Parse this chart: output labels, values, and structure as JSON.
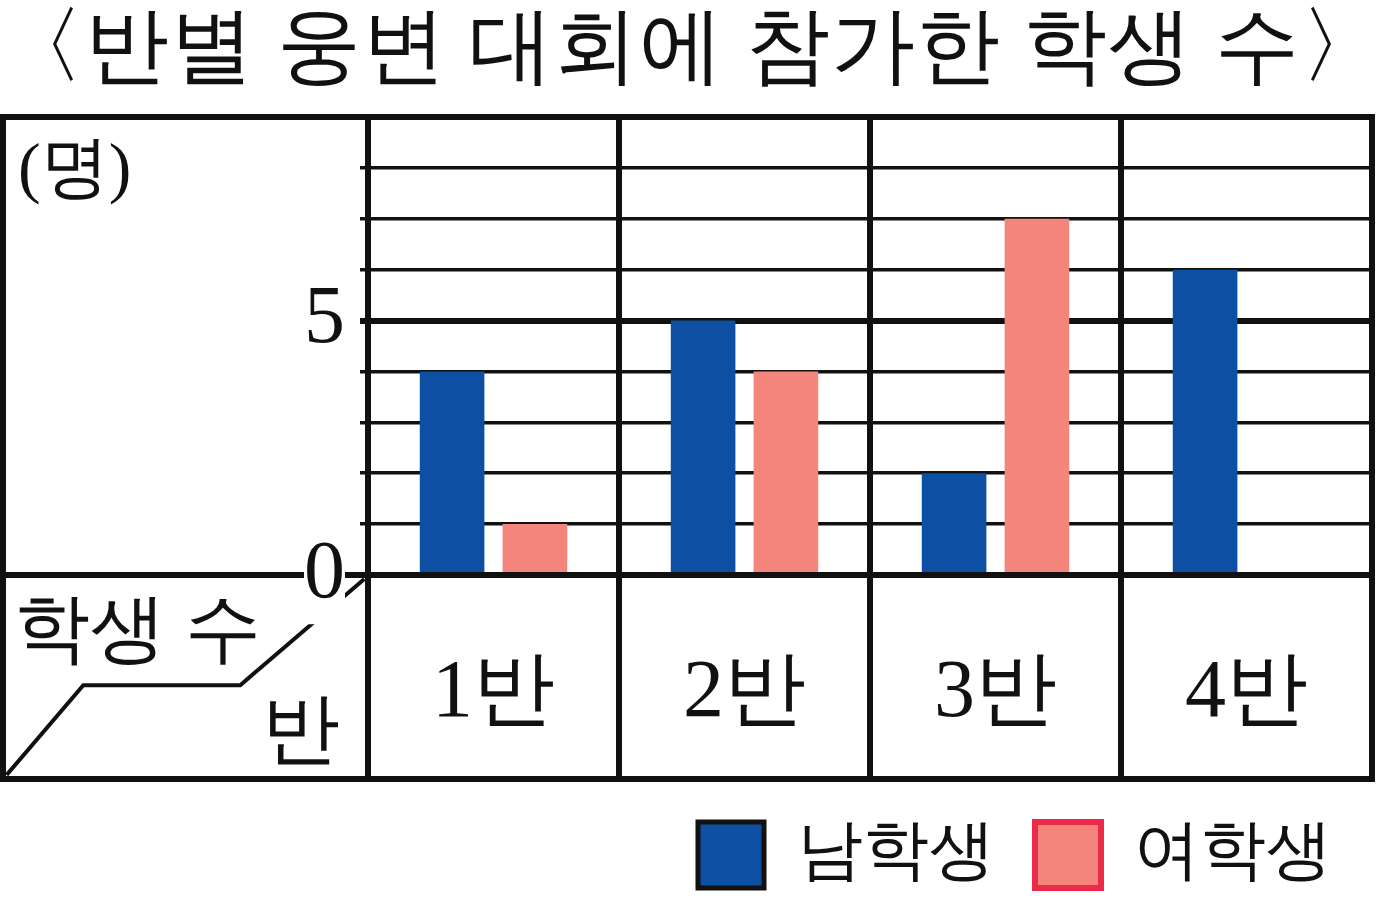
{
  "chart_data": {
    "type": "bar",
    "title": "〈반별 웅변 대회에 참가한 학생 수〉",
    "xlabel": "반",
    "ylabel": "(명)",
    "annotations": [
      "학생 수"
    ],
    "categories": [
      "1반",
      "2반",
      "3반",
      "4반"
    ],
    "series": [
      {
        "name": "남학생",
        "color": "#0d4fa3",
        "values": [
          4,
          5,
          2,
          6
        ]
      },
      {
        "name": "여학생",
        "color": "#f3857c",
        "values": [
          1,
          4,
          7,
          null
        ]
      }
    ],
    "ylim": [
      0,
      9
    ],
    "yticks": [
      0,
      {
        "value": 1,
        "label": null
      },
      {
        "value": 2,
        "label": null
      },
      {
        "value": 3,
        "label": null
      },
      {
        "value": 4,
        "label": null
      },
      5,
      {
        "value": 6,
        "label": null
      },
      {
        "value": 7,
        "label": null
      },
      {
        "value": 8,
        "label": null
      }
    ],
    "grid": true,
    "legend": "bottom right"
  }
}
